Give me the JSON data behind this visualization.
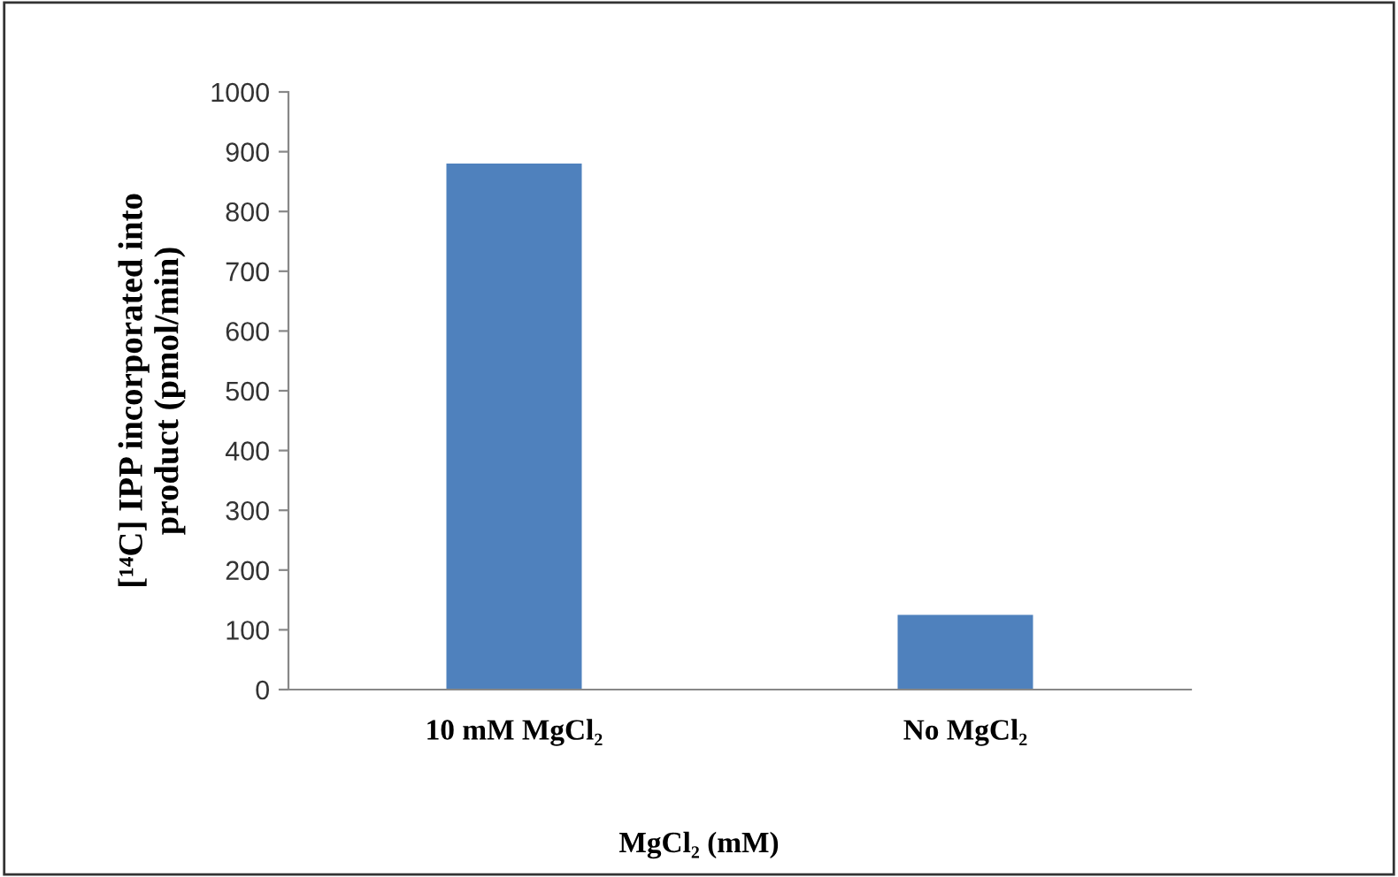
{
  "chart_data": {
    "type": "bar",
    "xlabel": "MgCl₂ (mM)",
    "ylabel": "[¹⁴C] IPP incorporated into\nproduct (pmol/min)",
    "categories": [
      "10 mM MgCl₂",
      "No MgCl₂"
    ],
    "values": [
      880,
      125
    ],
    "color": "#4f81bd",
    "ylim": [
      0,
      1000
    ],
    "yticks": [
      0,
      100,
      200,
      300,
      400,
      500,
      600,
      700,
      800,
      900,
      1000
    ],
    "grid": false
  }
}
